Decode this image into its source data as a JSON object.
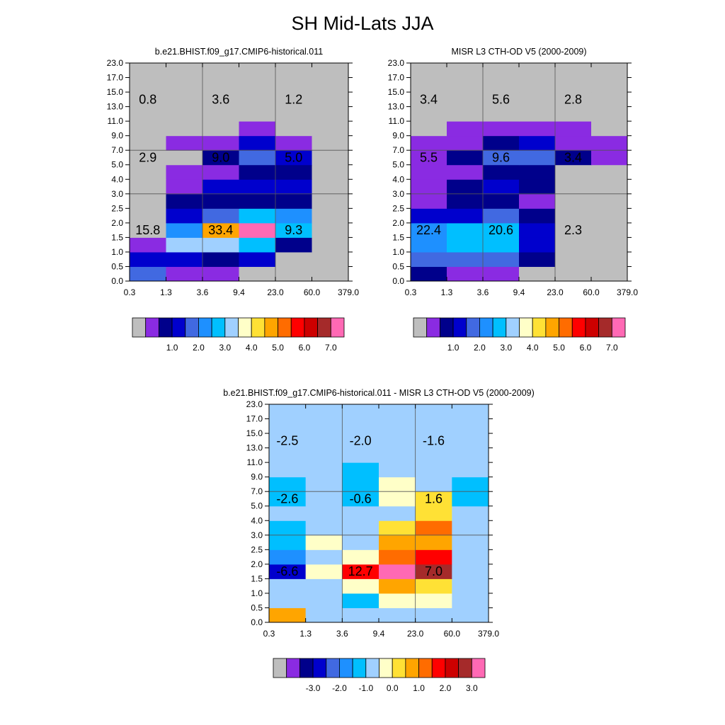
{
  "title": "SH Mid-Lats JJA",
  "chart_data": [
    {
      "type": "heatmap",
      "title": "b.e21.BHIST.f09_g17.CMIP6-historical.011",
      "x_ticks": [
        "0.3",
        "1.3",
        "3.6",
        "9.4",
        "23.0",
        "60.0",
        "379.0"
      ],
      "y_ticks": [
        "0.0",
        "0.5",
        "1.0",
        "1.5",
        "2.0",
        "2.5",
        "3.0",
        "4.0",
        "5.0",
        "7.0",
        "9.0",
        "11.0",
        "13.0",
        "15.0",
        "17.0",
        "23.0"
      ],
      "cell_colors_bottom_to_top": [
        [
          "royal_blue",
          "purple",
          "purple",
          "gray",
          "gray",
          "gray"
        ],
        [
          "medium_blue",
          "medium_blue",
          "navy",
          "medium_blue",
          "gray",
          "gray"
        ],
        [
          "purple",
          "light_sky_blue",
          "light_sky_blue",
          "deep_sky_blue",
          "navy",
          "gray"
        ],
        [
          "gray",
          "dodger_blue",
          "orange",
          "hot_pink",
          "deep_sky_blue",
          "gray"
        ],
        [
          "gray",
          "medium_blue",
          "royal_blue",
          "deep_sky_blue",
          "dodger_blue",
          "gray"
        ],
        [
          "gray",
          "navy",
          "navy",
          "navy",
          "navy",
          "gray"
        ],
        [
          "gray",
          "purple",
          "medium_blue",
          "medium_blue",
          "medium_blue",
          "gray"
        ],
        [
          "gray",
          "purple",
          "purple",
          "navy",
          "navy",
          "gray"
        ],
        [
          "gray",
          "gray",
          "navy",
          "royal_blue",
          "medium_blue",
          "gray"
        ],
        [
          "gray",
          "purple",
          "purple",
          "medium_blue",
          "purple",
          "gray"
        ],
        [
          "gray",
          "gray",
          "gray",
          "purple",
          "gray",
          "gray"
        ],
        [
          "gray",
          "gray",
          "gray",
          "gray",
          "gray",
          "gray"
        ],
        [
          "gray",
          "gray",
          "gray",
          "gray",
          "gray",
          "gray"
        ],
        [
          "gray",
          "gray",
          "gray",
          "gray",
          "gray",
          "gray"
        ],
        [
          "gray",
          "gray",
          "gray",
          "gray",
          "gray",
          "gray"
        ]
      ],
      "annotations": [
        {
          "text": "15.8",
          "col": 0.5,
          "row": 3.5
        },
        {
          "text": "33.4",
          "col": 2.5,
          "row": 3.5
        },
        {
          "text": "9.3",
          "col": 4.5,
          "row": 3.5
        },
        {
          "text": "2.9",
          "col": 0.5,
          "row": 8.5
        },
        {
          "text": "9.0",
          "col": 2.5,
          "row": 8.5
        },
        {
          "text": "5.0",
          "col": 4.5,
          "row": 8.5
        },
        {
          "text": "0.8",
          "col": 0.5,
          "row": 12.5
        },
        {
          "text": "3.6",
          "col": 2.5,
          "row": 12.5
        },
        {
          "text": "1.2",
          "col": 4.5,
          "row": 12.5
        }
      ],
      "colorbar_labels": [
        "1.0",
        "2.0",
        "3.0",
        "4.0",
        "5.0",
        "6.0",
        "7.0"
      ]
    },
    {
      "type": "heatmap",
      "title": "MISR L3 CTH-OD V5 (2000-2009)",
      "x_ticks": [
        "0.3",
        "1.3",
        "3.6",
        "9.4",
        "23.0",
        "60.0",
        "379.0"
      ],
      "y_ticks": [
        "0.0",
        "0.5",
        "1.0",
        "1.5",
        "2.0",
        "2.5",
        "3.0",
        "4.0",
        "5.0",
        "7.0",
        "9.0",
        "11.0",
        "13.0",
        "15.0",
        "17.0",
        "23.0"
      ],
      "cell_colors_bottom_to_top": [
        [
          "navy",
          "purple",
          "purple",
          "gray",
          "gray",
          "gray"
        ],
        [
          "royal_blue",
          "royal_blue",
          "royal_blue",
          "navy",
          "gray",
          "gray"
        ],
        [
          "dodger_blue",
          "deep_sky_blue",
          "deep_sky_blue",
          "medium_blue",
          "gray",
          "gray"
        ],
        [
          "dodger_blue",
          "deep_sky_blue",
          "deep_sky_blue",
          "medium_blue",
          "gray",
          "gray"
        ],
        [
          "medium_blue",
          "medium_blue",
          "royal_blue",
          "navy",
          "gray",
          "gray"
        ],
        [
          "purple",
          "navy",
          "navy",
          "purple",
          "gray",
          "gray"
        ],
        [
          "purple",
          "navy",
          "medium_blue",
          "navy",
          "gray",
          "gray"
        ],
        [
          "purple",
          "purple",
          "navy",
          "navy",
          "gray",
          "gray"
        ],
        [
          "purple",
          "navy",
          "royal_blue",
          "royal_blue",
          "navy",
          "purple"
        ],
        [
          "purple",
          "purple",
          "navy",
          "medium_blue",
          "purple",
          "purple"
        ],
        [
          "gray",
          "purple",
          "purple",
          "purple",
          "purple",
          "gray"
        ],
        [
          "gray",
          "gray",
          "gray",
          "gray",
          "gray",
          "gray"
        ],
        [
          "gray",
          "gray",
          "gray",
          "gray",
          "gray",
          "gray"
        ],
        [
          "gray",
          "gray",
          "gray",
          "gray",
          "gray",
          "gray"
        ],
        [
          "gray",
          "gray",
          "gray",
          "gray",
          "gray",
          "gray"
        ]
      ],
      "annotations": [
        {
          "text": "22.4",
          "col": 0.5,
          "row": 3.5
        },
        {
          "text": "20.6",
          "col": 2.5,
          "row": 3.5
        },
        {
          "text": "2.3",
          "col": 4.5,
          "row": 3.5
        },
        {
          "text": "5.5",
          "col": 0.5,
          "row": 8.5
        },
        {
          "text": "9.6",
          "col": 2.5,
          "row": 8.5
        },
        {
          "text": "3.4",
          "col": 4.5,
          "row": 8.5
        },
        {
          "text": "3.4",
          "col": 0.5,
          "row": 12.5
        },
        {
          "text": "5.6",
          "col": 2.5,
          "row": 12.5
        },
        {
          "text": "2.8",
          "col": 4.5,
          "row": 12.5
        }
      ],
      "colorbar_labels": [
        "1.0",
        "2.0",
        "3.0",
        "4.0",
        "5.0",
        "6.0",
        "7.0"
      ]
    },
    {
      "type": "heatmap",
      "title": "b.e21.BHIST.f09_g17.CMIP6-historical.011 - MISR L3 CTH-OD V5 (2000-2009)",
      "x_ticks": [
        "0.3",
        "1.3",
        "3.6",
        "9.4",
        "23.0",
        "60.0",
        "379.0"
      ],
      "y_ticks": [
        "0.0",
        "0.5",
        "1.0",
        "1.5",
        "2.0",
        "2.5",
        "3.0",
        "4.0",
        "5.0",
        "7.0",
        "9.0",
        "11.0",
        "13.0",
        "15.0",
        "17.0",
        "23.0"
      ],
      "cell_colors_bottom_to_top": [
        [
          "orange",
          "light_sky_blue",
          "light_sky_blue",
          "light_sky_blue",
          "light_sky_blue",
          "light_sky_blue"
        ],
        [
          "light_sky_blue",
          "light_sky_blue",
          "deep_sky_blue",
          "light_yellow",
          "light_yellow",
          "light_sky_blue"
        ],
        [
          "light_sky_blue",
          "light_sky_blue",
          "light_yellow",
          "orange",
          "gold",
          "light_sky_blue"
        ],
        [
          "medium_blue",
          "light_yellow",
          "red",
          "hot_pink",
          "brown",
          "light_sky_blue"
        ],
        [
          "dodger_blue",
          "light_sky_blue",
          "light_yellow",
          "dark_orange",
          "red",
          "light_sky_blue"
        ],
        [
          "deep_sky_blue",
          "light_yellow",
          "light_sky_blue",
          "orange",
          "orange",
          "light_sky_blue"
        ],
        [
          "deep_sky_blue",
          "light_sky_blue",
          "light_sky_blue",
          "gold",
          "dark_orange",
          "light_sky_blue"
        ],
        [
          "light_sky_blue",
          "light_sky_blue",
          "light_sky_blue",
          "light_sky_blue",
          "gold",
          "light_sky_blue"
        ],
        [
          "deep_sky_blue",
          "light_sky_blue",
          "deep_sky_blue",
          "light_yellow",
          "gold",
          "deep_sky_blue"
        ],
        [
          "deep_sky_blue",
          "light_sky_blue",
          "deep_sky_blue",
          "light_yellow",
          "light_sky_blue",
          "deep_sky_blue"
        ],
        [
          "light_sky_blue",
          "light_sky_blue",
          "deep_sky_blue",
          "light_sky_blue",
          "light_sky_blue",
          "light_sky_blue"
        ],
        [
          "light_sky_blue",
          "light_sky_blue",
          "light_sky_blue",
          "light_sky_blue",
          "light_sky_blue",
          "light_sky_blue"
        ],
        [
          "light_sky_blue",
          "light_sky_blue",
          "light_sky_blue",
          "light_sky_blue",
          "light_sky_blue",
          "light_sky_blue"
        ],
        [
          "light_sky_blue",
          "light_sky_blue",
          "light_sky_blue",
          "light_sky_blue",
          "light_sky_blue",
          "light_sky_blue"
        ],
        [
          "light_sky_blue",
          "light_sky_blue",
          "light_sky_blue",
          "light_sky_blue",
          "light_sky_blue",
          "light_sky_blue"
        ]
      ],
      "annotations": [
        {
          "text": "-6.6",
          "col": 0.5,
          "row": 3.5
        },
        {
          "text": "12.7",
          "col": 2.5,
          "row": 3.5
        },
        {
          "text": "7.0",
          "col": 4.5,
          "row": 3.5
        },
        {
          "text": "-2.6",
          "col": 0.5,
          "row": 8.5
        },
        {
          "text": "-0.6",
          "col": 2.5,
          "row": 8.5
        },
        {
          "text": "1.6",
          "col": 4.5,
          "row": 8.5
        },
        {
          "text": "-2.5",
          "col": 0.5,
          "row": 12.5
        },
        {
          "text": "-2.0",
          "col": 2.5,
          "row": 12.5
        },
        {
          "text": "-1.6",
          "col": 4.5,
          "row": 12.5
        }
      ],
      "colorbar_labels": [
        "-3.0",
        "-2.0",
        "-1.0",
        "0.0",
        "1.0",
        "2.0",
        "3.0"
      ]
    }
  ],
  "colorbar_swatches": [
    "gray",
    "purple",
    "navy",
    "medium_blue",
    "royal_blue",
    "dodger_blue",
    "deep_sky_blue",
    "light_sky_blue",
    "light_yellow",
    "gold",
    "orange",
    "dark_orange",
    "red",
    "dark_red",
    "brown",
    "hot_pink"
  ],
  "palette": {
    "gray": "#bebebe",
    "purple": "#8a2be2",
    "navy": "#00008b",
    "medium_blue": "#0000cd",
    "royal_blue": "#4169e1",
    "dodger_blue": "#1e90ff",
    "deep_sky_blue": "#00bfff",
    "light_sky_blue": "#a0d0ff",
    "light_yellow": "#ffffc8",
    "gold": "#ffe135",
    "orange": "#ffa500",
    "dark_orange": "#ff6c00",
    "red": "#ff0000",
    "dark_red": "#cd0000",
    "brown": "#a52a2a",
    "hot_pink": "#ff69b4"
  }
}
